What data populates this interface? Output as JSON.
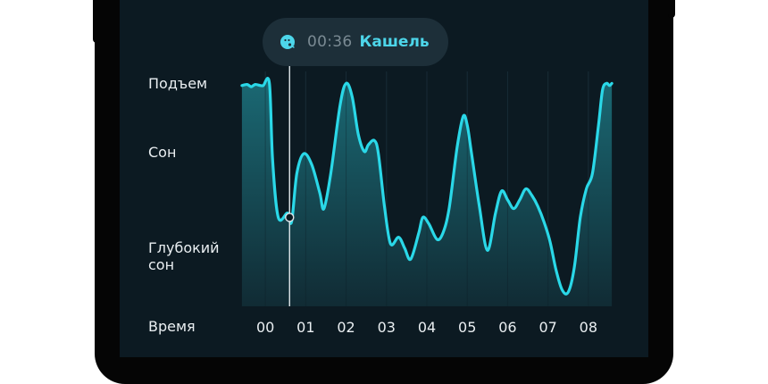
{
  "tooltip": {
    "time": "00:36",
    "event": "Кашель",
    "icon": "cough-face-icon"
  },
  "chart_data": {
    "type": "area",
    "y_categories": [
      "Подъем",
      "Сон",
      "Глубокий сон"
    ],
    "y_labels": {
      "awake": "Подъем",
      "sleep": "Сон",
      "deep": "Глубокий сон"
    },
    "xlabel": "Время",
    "x_ticks": [
      "00",
      "01",
      "02",
      "03",
      "04",
      "05",
      "06",
      "07",
      "08"
    ],
    "x_range_hours": [
      -0.6,
      8.6
    ],
    "y_range": [
      0,
      1
    ],
    "note_y": "0 = deepest, 1 = awake",
    "series": [
      {
        "color": "#2ad8e8",
        "points": [
          [
            -0.58,
            0.96
          ],
          [
            -0.45,
            0.965
          ],
          [
            -0.35,
            0.955
          ],
          [
            -0.25,
            0.965
          ],
          [
            -0.12,
            0.96
          ],
          [
            -0.05,
            0.96
          ],
          [
            0.1,
            0.97
          ],
          [
            0.18,
            0.62
          ],
          [
            0.32,
            0.36
          ],
          [
            0.55,
            0.38
          ],
          [
            0.65,
            0.34
          ],
          [
            0.78,
            0.56
          ],
          [
            0.95,
            0.65
          ],
          [
            1.15,
            0.6
          ],
          [
            1.35,
            0.47
          ],
          [
            1.45,
            0.4
          ],
          [
            1.62,
            0.56
          ],
          [
            1.85,
            0.87
          ],
          [
            2.0,
            0.97
          ],
          [
            2.15,
            0.91
          ],
          [
            2.3,
            0.74
          ],
          [
            2.45,
            0.66
          ],
          [
            2.55,
            0.69
          ],
          [
            2.7,
            0.71
          ],
          [
            2.8,
            0.65
          ],
          [
            2.95,
            0.41
          ],
          [
            3.1,
            0.24
          ],
          [
            3.3,
            0.27
          ],
          [
            3.45,
            0.22
          ],
          [
            3.6,
            0.17
          ],
          [
            3.8,
            0.29
          ],
          [
            3.9,
            0.36
          ],
          [
            4.05,
            0.33
          ],
          [
            4.25,
            0.26
          ],
          [
            4.4,
            0.29
          ],
          [
            4.55,
            0.4
          ],
          [
            4.75,
            0.68
          ],
          [
            4.9,
            0.82
          ],
          [
            5.0,
            0.78
          ],
          [
            5.1,
            0.66
          ],
          [
            5.3,
            0.41
          ],
          [
            5.5,
            0.21
          ],
          [
            5.7,
            0.38
          ],
          [
            5.85,
            0.48
          ],
          [
            6.0,
            0.44
          ],
          [
            6.15,
            0.4
          ],
          [
            6.3,
            0.44
          ],
          [
            6.45,
            0.49
          ],
          [
            6.6,
            0.46
          ],
          [
            6.75,
            0.41
          ],
          [
            6.9,
            0.34
          ],
          [
            7.05,
            0.25
          ],
          [
            7.2,
            0.12
          ],
          [
            7.35,
            0.03
          ],
          [
            7.5,
            0.02
          ],
          [
            7.65,
            0.13
          ],
          [
            7.8,
            0.36
          ],
          [
            7.95,
            0.49
          ],
          [
            8.1,
            0.56
          ],
          [
            8.25,
            0.78
          ],
          [
            8.35,
            0.94
          ],
          [
            8.45,
            0.97
          ],
          [
            8.52,
            0.96
          ],
          [
            8.58,
            0.97
          ]
        ]
      }
    ],
    "cursor_time_hours": 0.6,
    "colors": {
      "background": "#0c1a22",
      "line": "#2ad8e8",
      "fill_top": "#1b6d78",
      "fill_bottom": "#112c35",
      "grid": "#1f3540",
      "cursor": "#dfe6ea"
    }
  }
}
